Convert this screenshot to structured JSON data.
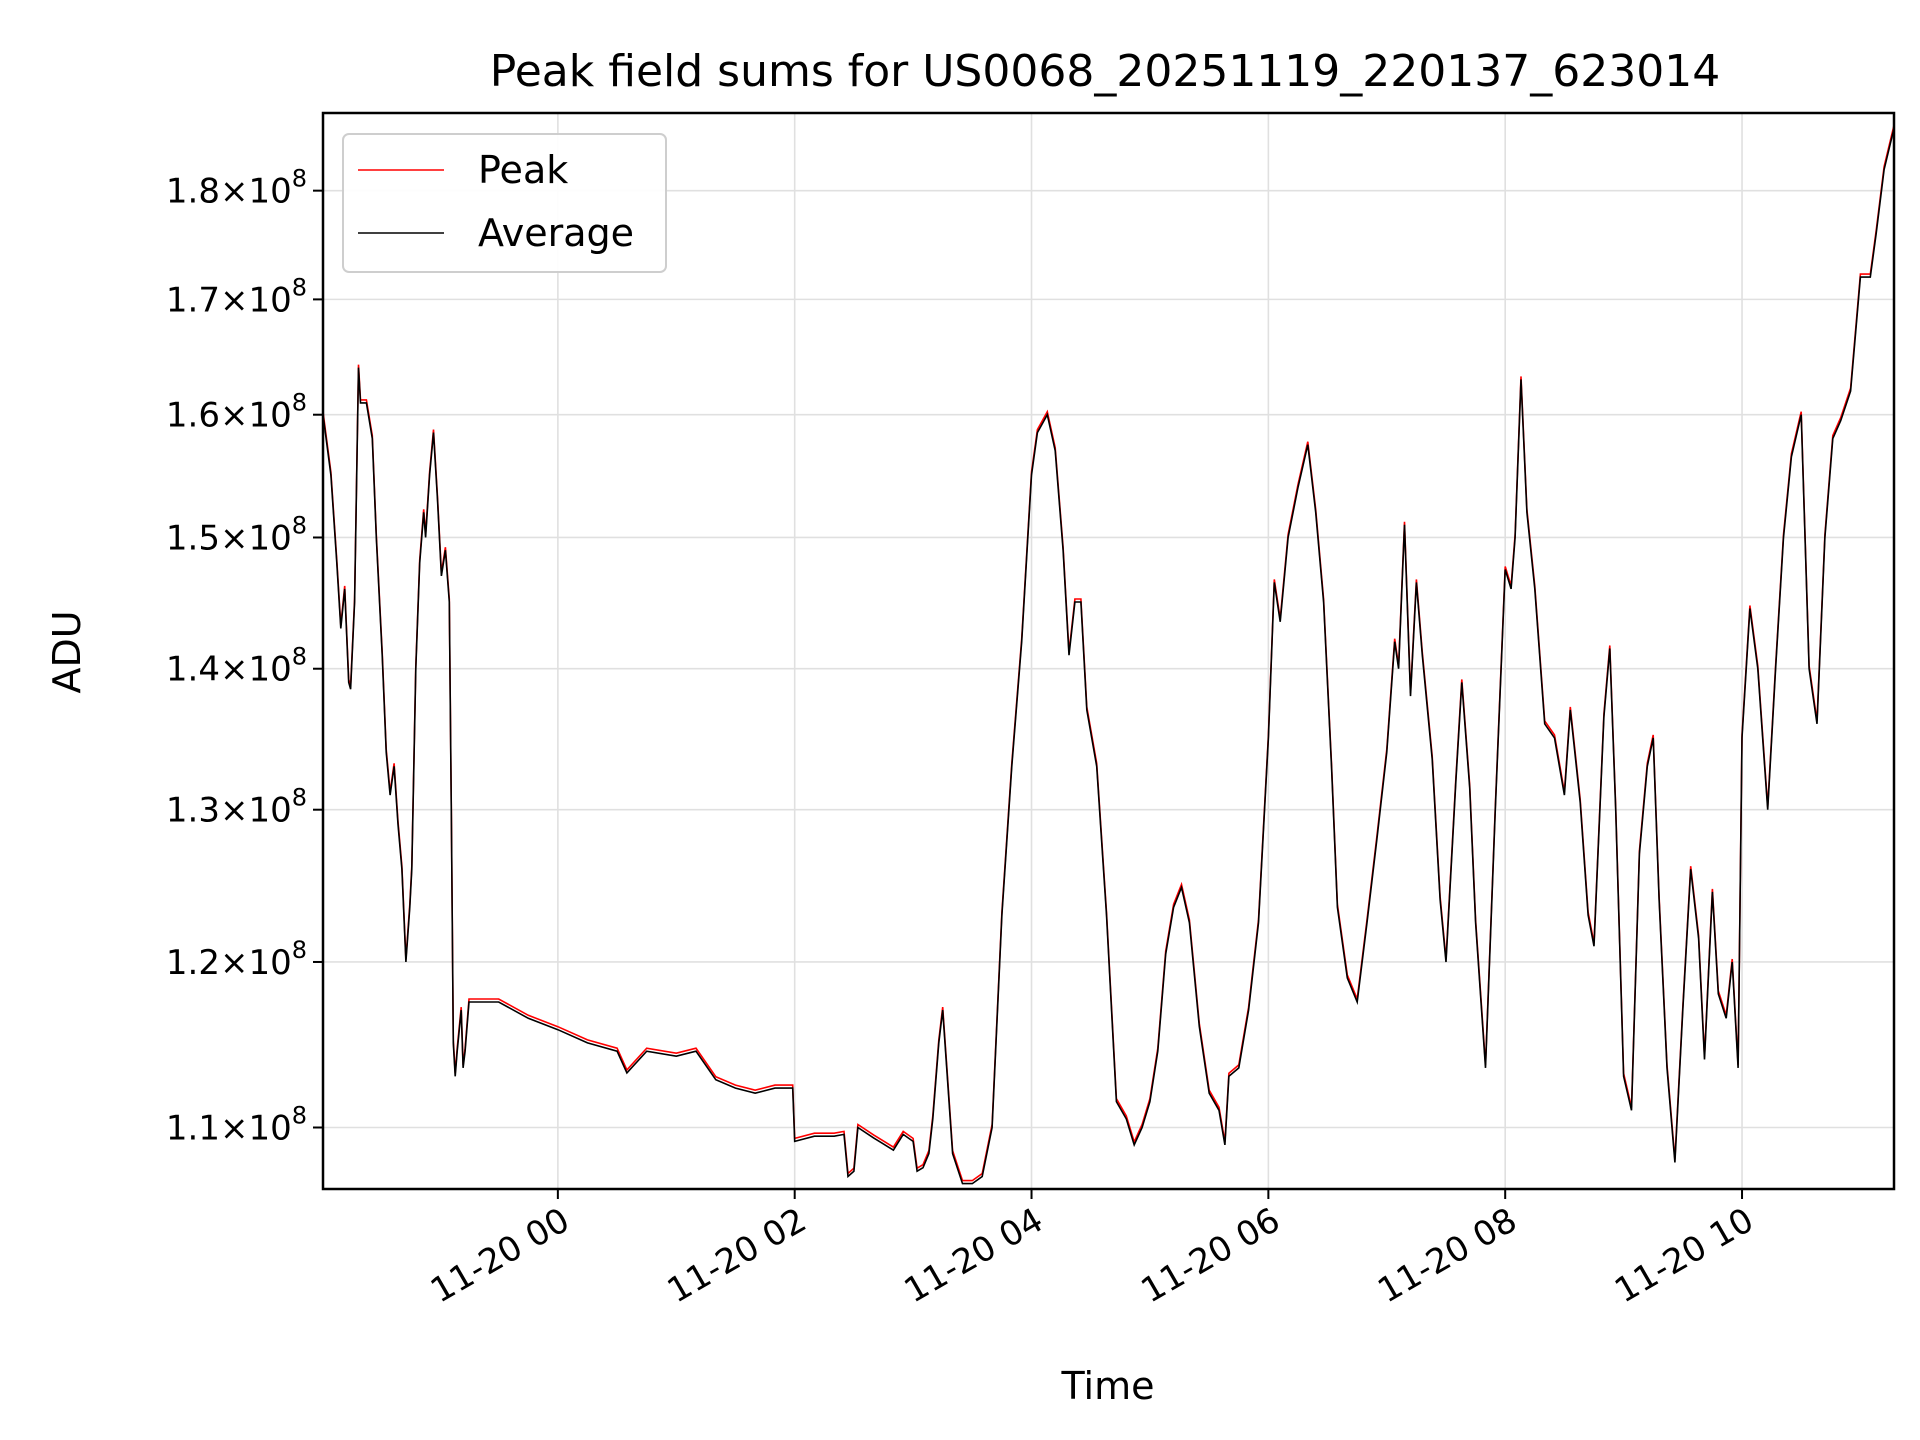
{
  "chart_data": {
    "type": "line",
    "title": "Peak field sums for US0068_20251119_220137_623014",
    "xlabel": "Time",
    "ylabel": "ADU",
    "y_scale": "log",
    "grid": true,
    "legend_position": "upper-left",
    "xlim": [
      "2025-11-19 22:01",
      "2025-11-20 11:17"
    ],
    "ylim": [
      106500000,
      187500000
    ],
    "x_ticks": [
      {
        "label": "11-20 00",
        "value": "2025-11-20 00:00"
      },
      {
        "label": "11-20 02",
        "value": "2025-11-20 02:00"
      },
      {
        "label": "11-20 04",
        "value": "2025-11-20 04:00"
      },
      {
        "label": "11-20 06",
        "value": "2025-11-20 06:00"
      },
      {
        "label": "11-20 08",
        "value": "2025-11-20 08:00"
      },
      {
        "label": "11-20 10",
        "value": "2025-11-20 10:00"
      }
    ],
    "y_ticks": [
      {
        "mant": "1.1",
        "exp": "8",
        "value": 110000000
      },
      {
        "mant": "1.2",
        "exp": "8",
        "value": 120000000
      },
      {
        "mant": "1.3",
        "exp": "8",
        "value": 130000000
      },
      {
        "mant": "1.4",
        "exp": "8",
        "value": 140000000
      },
      {
        "mant": "1.5",
        "exp": "8",
        "value": 150000000
      },
      {
        "mant": "1.6",
        "exp": "8",
        "value": 160000000
      },
      {
        "mant": "1.7",
        "exp": "8",
        "value": 170000000
      },
      {
        "mant": "1.8",
        "exp": "8",
        "value": 180000000
      }
    ],
    "times_label": "x=",
    "series": [
      {
        "name": "Average",
        "color": "#000000",
        "points": [
          [
            "2025-11-19 22:01",
            160.0
          ],
          [
            "2025-11-19 22:05",
            155.0
          ],
          [
            "2025-11-19 22:08",
            148.0
          ],
          [
            "2025-11-19 22:10",
            143.0
          ],
          [
            "2025-11-19 22:12",
            146.0
          ],
          [
            "2025-11-19 22:14",
            139.0
          ],
          [
            "2025-11-19 22:15",
            138.5
          ],
          [
            "2025-11-19 22:17",
            145.0
          ],
          [
            "2025-11-19 22:19",
            164.0
          ],
          [
            "2025-11-19 22:20",
            161.0
          ],
          [
            "2025-11-19 22:23",
            161.0
          ],
          [
            "2025-11-19 22:26",
            158.0
          ],
          [
            "2025-11-19 22:28",
            150.0
          ],
          [
            "2025-11-19 22:31",
            141.0
          ],
          [
            "2025-11-19 22:33",
            134.0
          ],
          [
            "2025-11-19 22:35",
            131.0
          ],
          [
            "2025-11-19 22:37",
            133.0
          ],
          [
            "2025-11-19 22:39",
            129.0
          ],
          [
            "2025-11-19 22:41",
            126.0
          ],
          [
            "2025-11-19 22:43",
            120.0
          ],
          [
            "2025-11-19 22:45",
            123.5
          ],
          [
            "2025-11-19 22:46",
            126.0
          ],
          [
            "2025-11-19 22:48",
            140.0
          ],
          [
            "2025-11-19 22:50",
            148.0
          ],
          [
            "2025-11-19 22:52",
            152.0
          ],
          [
            "2025-11-19 22:53",
            150.0
          ],
          [
            "2025-11-19 22:55",
            155.0
          ],
          [
            "2025-11-19 22:57",
            158.5
          ],
          [
            "2025-11-19 22:59",
            153.0
          ],
          [
            "2025-11-19 23:01",
            147.0
          ],
          [
            "2025-11-19 23:03",
            149.0
          ],
          [
            "2025-11-19 23:05",
            145.0
          ],
          [
            "2025-11-19 23:06",
            130.0
          ],
          [
            "2025-11-19 23:07",
            115.0
          ],
          [
            "2025-11-19 23:08",
            113.0
          ],
          [
            "2025-11-19 23:09",
            114.5
          ],
          [
            "2025-11-19 23:11",
            117.0
          ],
          [
            "2025-11-19 23:12",
            113.5
          ],
          [
            "2025-11-19 23:13",
            114.5
          ],
          [
            "2025-11-19 23:15",
            117.5
          ],
          [
            "2025-11-19 23:30",
            117.5
          ],
          [
            "2025-11-19 23:45",
            116.5
          ],
          [
            "2025-11-20 00:00",
            115.8
          ],
          [
            "2025-11-20 00:15",
            115.0
          ],
          [
            "2025-11-20 00:30",
            114.5
          ],
          [
            "2025-11-20 00:35",
            113.2
          ],
          [
            "2025-11-20 00:45",
            114.5
          ],
          [
            "2025-11-20 01:00",
            114.2
          ],
          [
            "2025-11-20 01:10",
            114.5
          ],
          [
            "2025-11-20 01:20",
            112.8
          ],
          [
            "2025-11-20 01:30",
            112.3
          ],
          [
            "2025-11-20 01:40",
            112.0
          ],
          [
            "2025-11-20 01:50",
            112.3
          ],
          [
            "2025-11-20 01:59",
            112.3
          ],
          [
            "2025-11-20 02:00",
            109.2
          ],
          [
            "2025-11-20 02:10",
            109.5
          ],
          [
            "2025-11-20 02:20",
            109.5
          ],
          [
            "2025-11-20 02:25",
            109.6
          ],
          [
            "2025-11-20 02:27",
            107.2
          ],
          [
            "2025-11-20 02:30",
            107.5
          ],
          [
            "2025-11-20 02:32",
            110.0
          ],
          [
            "2025-11-20 02:40",
            109.4
          ],
          [
            "2025-11-20 02:50",
            108.7
          ],
          [
            "2025-11-20 02:55",
            109.6
          ],
          [
            "2025-11-20 03:00",
            109.2
          ],
          [
            "2025-11-20 03:02",
            107.5
          ],
          [
            "2025-11-20 03:05",
            107.7
          ],
          [
            "2025-11-20 03:08",
            108.5
          ],
          [
            "2025-11-20 03:10",
            110.5
          ],
          [
            "2025-11-20 03:13",
            115.0
          ],
          [
            "2025-11-20 03:15",
            117.0
          ],
          [
            "2025-11-20 03:17",
            113.5
          ],
          [
            "2025-11-20 03:20",
            108.5
          ],
          [
            "2025-11-20 03:25",
            106.8
          ],
          [
            "2025-11-20 03:30",
            106.8
          ],
          [
            "2025-11-20 03:35",
            107.2
          ],
          [
            "2025-11-20 03:40",
            110.0
          ],
          [
            "2025-11-20 03:45",
            123.0
          ],
          [
            "2025-11-20 03:50",
            133.0
          ],
          [
            "2025-11-20 03:55",
            142.0
          ],
          [
            "2025-11-20 04:00",
            155.0
          ],
          [
            "2025-11-20 04:03",
            158.5
          ],
          [
            "2025-11-20 04:08",
            160.0
          ],
          [
            "2025-11-20 04:12",
            157.0
          ],
          [
            "2025-11-20 04:16",
            149.0
          ],
          [
            "2025-11-20 04:19",
            141.0
          ],
          [
            "2025-11-20 04:22",
            145.0
          ],
          [
            "2025-11-20 04:25",
            145.0
          ],
          [
            "2025-11-20 04:28",
            137.0
          ],
          [
            "2025-11-20 04:33",
            133.0
          ],
          [
            "2025-11-20 04:38",
            123.0
          ],
          [
            "2025-11-20 04:43",
            111.5
          ],
          [
            "2025-11-20 04:48",
            110.5
          ],
          [
            "2025-11-20 04:52",
            109.0
          ],
          [
            "2025-11-20 04:56",
            110.0
          ],
          [
            "2025-11-20 05:00",
            111.5
          ],
          [
            "2025-11-20 05:04",
            114.5
          ],
          [
            "2025-11-20 05:08",
            120.5
          ],
          [
            "2025-11-20 05:12",
            123.5
          ],
          [
            "2025-11-20 05:16",
            124.8
          ],
          [
            "2025-11-20 05:20",
            122.5
          ],
          [
            "2025-11-20 05:25",
            116.0
          ],
          [
            "2025-11-20 05:30",
            112.0
          ],
          [
            "2025-11-20 05:35",
            111.0
          ],
          [
            "2025-11-20 05:38",
            109.0
          ],
          [
            "2025-11-20 05:40",
            113.0
          ],
          [
            "2025-11-20 05:45",
            113.5
          ],
          [
            "2025-11-20 05:50",
            117.0
          ],
          [
            "2025-11-20 05:55",
            122.5
          ],
          [
            "2025-11-20 06:00",
            135.0
          ],
          [
            "2025-11-20 06:03",
            146.5
          ],
          [
            "2025-11-20 06:06",
            143.5
          ],
          [
            "2025-11-20 06:10",
            150.0
          ],
          [
            "2025-11-20 06:15",
            154.0
          ],
          [
            "2025-11-20 06:20",
            157.5
          ],
          [
            "2025-11-20 06:24",
            152.0
          ],
          [
            "2025-11-20 06:28",
            145.0
          ],
          [
            "2025-11-20 06:32",
            133.0
          ],
          [
            "2025-11-20 06:35",
            123.5
          ],
          [
            "2025-11-20 06:40",
            119.0
          ],
          [
            "2025-11-20 06:45",
            117.5
          ],
          [
            "2025-11-20 06:50",
            122.5
          ],
          [
            "2025-11-20 06:55",
            128.0
          ],
          [
            "2025-11-20 07:00",
            134.0
          ],
          [
            "2025-11-20 07:04",
            142.0
          ],
          [
            "2025-11-20 07:06",
            140.0
          ],
          [
            "2025-11-20 07:09",
            151.0
          ],
          [
            "2025-11-20 07:12",
            138.0
          ],
          [
            "2025-11-20 07:15",
            146.5
          ],
          [
            "2025-11-20 07:18",
            141.0
          ],
          [
            "2025-11-20 07:23",
            133.5
          ],
          [
            "2025-11-20 07:27",
            124.0
          ],
          [
            "2025-11-20 07:30",
            120.0
          ],
          [
            "2025-11-20 07:35",
            132.0
          ],
          [
            "2025-11-20 07:38",
            139.0
          ],
          [
            "2025-11-20 07:42",
            131.5
          ],
          [
            "2025-11-20 07:45",
            122.5
          ],
          [
            "2025-11-20 07:50",
            113.5
          ],
          [
            "2025-11-20 07:55",
            130.0
          ],
          [
            "2025-11-20 08:00",
            147.5
          ],
          [
            "2025-11-20 08:03",
            146.0
          ],
          [
            "2025-11-20 08:05",
            150.0
          ],
          [
            "2025-11-20 08:08",
            163.0
          ],
          [
            "2025-11-20 08:11",
            152.0
          ],
          [
            "2025-11-20 08:15",
            146.0
          ],
          [
            "2025-11-20 08:20",
            136.0
          ],
          [
            "2025-11-20 08:25",
            135.0
          ],
          [
            "2025-11-20 08:30",
            131.0
          ],
          [
            "2025-11-20 08:33",
            137.0
          ],
          [
            "2025-11-20 08:38",
            130.5
          ],
          [
            "2025-11-20 08:42",
            123.0
          ],
          [
            "2025-11-20 08:45",
            121.0
          ],
          [
            "2025-11-20 08:50",
            136.5
          ],
          [
            "2025-11-20 08:53",
            141.5
          ],
          [
            "2025-11-20 08:56",
            130.0
          ],
          [
            "2025-11-20 09:00",
            113.0
          ],
          [
            "2025-11-20 09:04",
            111.0
          ],
          [
            "2025-11-20 09:08",
            127.0
          ],
          [
            "2025-11-20 09:12",
            133.0
          ],
          [
            "2025-11-20 09:15",
            135.0
          ],
          [
            "2025-11-20 09:18",
            124.0
          ],
          [
            "2025-11-20 09:22",
            113.5
          ],
          [
            "2025-11-20 09:26",
            108.0
          ],
          [
            "2025-11-20 09:30",
            117.0
          ],
          [
            "2025-11-20 09:34",
            126.0
          ],
          [
            "2025-11-20 09:38",
            121.5
          ],
          [
            "2025-11-20 09:41",
            114.0
          ],
          [
            "2025-11-20 09:45",
            124.5
          ],
          [
            "2025-11-20 09:48",
            118.0
          ],
          [
            "2025-11-20 09:52",
            116.5
          ],
          [
            "2025-11-20 09:55",
            120.0
          ],
          [
            "2025-11-20 09:58",
            113.5
          ],
          [
            "2025-11-20 10:00",
            135.0
          ],
          [
            "2025-11-20 10:04",
            144.5
          ],
          [
            "2025-11-20 10:08",
            140.0
          ],
          [
            "2025-11-20 10:13",
            130.0
          ],
          [
            "2025-11-20 10:17",
            140.0
          ],
          [
            "2025-11-20 10:21",
            150.0
          ],
          [
            "2025-11-20 10:25",
            156.5
          ],
          [
            "2025-11-20 10:30",
            160.0
          ],
          [
            "2025-11-20 10:34",
            140.0
          ],
          [
            "2025-11-20 10:38",
            136.0
          ],
          [
            "2025-11-20 10:42",
            150.0
          ],
          [
            "2025-11-20 10:46",
            158.0
          ],
          [
            "2025-11-20 10:50",
            159.5
          ],
          [
            "2025-11-20 10:55",
            162.0
          ],
          [
            "2025-11-20 11:00",
            172.0
          ],
          [
            "2025-11-20 11:05",
            172.0
          ],
          [
            "2025-11-20 11:08",
            176.0
          ],
          [
            "2025-11-20 11:12",
            182.0
          ],
          [
            "2025-11-20 11:17",
            186.0
          ]
        ]
      },
      {
        "name": "Peak",
        "color": "#ff0000",
        "points": []
      }
    ]
  },
  "legend": {
    "peak": "Peak",
    "average": "Average"
  }
}
